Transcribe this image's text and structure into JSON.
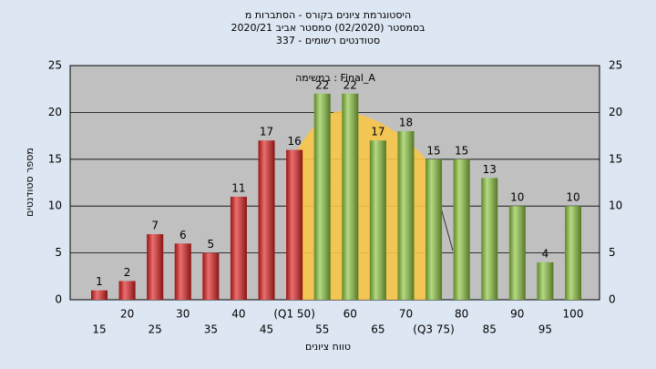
{
  "chart_data": {
    "type": "bar",
    "title": [
      "היסטוגרמת ציונים בקורס - הסתברות מ",
      "בסמסטר  (02/2020)  סמסטר אביב 2020/21",
      "סטודנטים רשומים - 337"
    ],
    "annotation": "במשימה : Final_A",
    "xlabel": "טווח ציונים",
    "ylabel": "מספר סטודנטים",
    "categories": [
      "15",
      "20",
      "25",
      "30",
      "35",
      "40",
      "45",
      "(Q1 50)",
      "55",
      "60",
      "65",
      "70",
      "(Q3 75)",
      "80",
      "85",
      "90",
      "95",
      "100"
    ],
    "values": [
      1,
      2,
      7,
      6,
      5,
      11,
      17,
      16,
      22,
      22,
      17,
      18,
      15,
      15,
      13,
      10,
      4,
      10
    ],
    "colors": [
      "#e02020",
      "#e02020",
      "#e02020",
      "#e02020",
      "#e02020",
      "#e02020",
      "#e02020",
      "#e02020",
      "#8cc63f",
      "#8cc63f",
      "#8cc63f",
      "#8cc63f",
      "#8cc63f",
      "#8cc63f",
      "#8cc63f",
      "#8cc63f",
      "#8cc63f",
      "#8cc63f"
    ],
    "ylim": [
      0,
      25
    ],
    "yticks": [
      0,
      5,
      10,
      15,
      20,
      25
    ],
    "grid": true
  }
}
